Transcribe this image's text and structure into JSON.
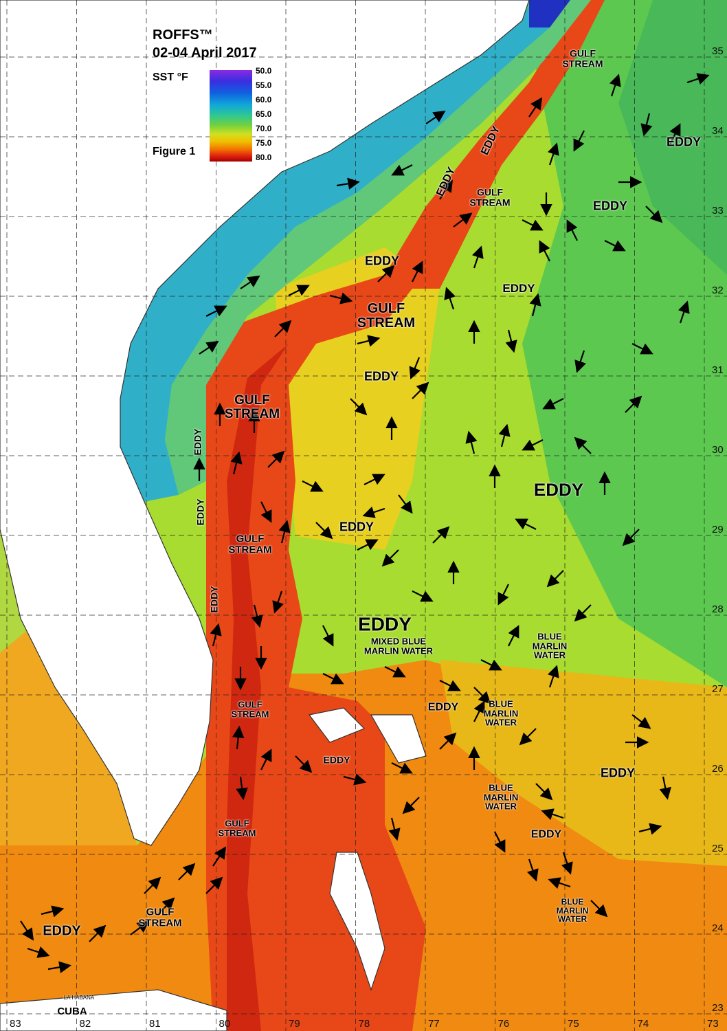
{
  "header": {
    "title": "ROFFS™",
    "date": "02-04 April 2017",
    "legend_title": "SST °F",
    "figure": "Figure 1"
  },
  "legend": [
    "50.0",
    "55.0",
    "60.0",
    "65.0",
    "70.0",
    "75.0",
    "80.0"
  ],
  "grid": {
    "latitudes": [
      "35",
      "34",
      "33",
      "32",
      "31",
      "30",
      "29",
      "28",
      "27",
      "26",
      "25",
      "24",
      "23"
    ],
    "longitudes": [
      "83",
      "82",
      "81",
      "80",
      "79",
      "78",
      "77",
      "76",
      "75",
      "74",
      "73"
    ]
  },
  "annotations": [
    "GULF STREAM",
    "EDDY",
    "EDDY",
    "EDDY",
    "GULF STREAM",
    "EDDY",
    "EDDY",
    "EDDY",
    "GULF STREAM",
    "EDDY",
    "GULF STREAM",
    "EDDY",
    "EDDY",
    "EDDY",
    "EDDY",
    "GULF STREAM",
    "EDDY",
    "EDDY",
    "MIXED BLUE MARLIN WATER",
    "BLUE MARLIN WATER",
    "GULF STREAM",
    "EDDY",
    "BLUE MARLIN WATER",
    "EDDY",
    "EDDY",
    "BLUE MARLIN WATER",
    "EDDY",
    "GULF STREAM",
    "BLUE MARLIN WATER",
    "GULF STREAM",
    "EDDY"
  ],
  "places": [
    "CUBA",
    "LA HABANA"
  ]
}
